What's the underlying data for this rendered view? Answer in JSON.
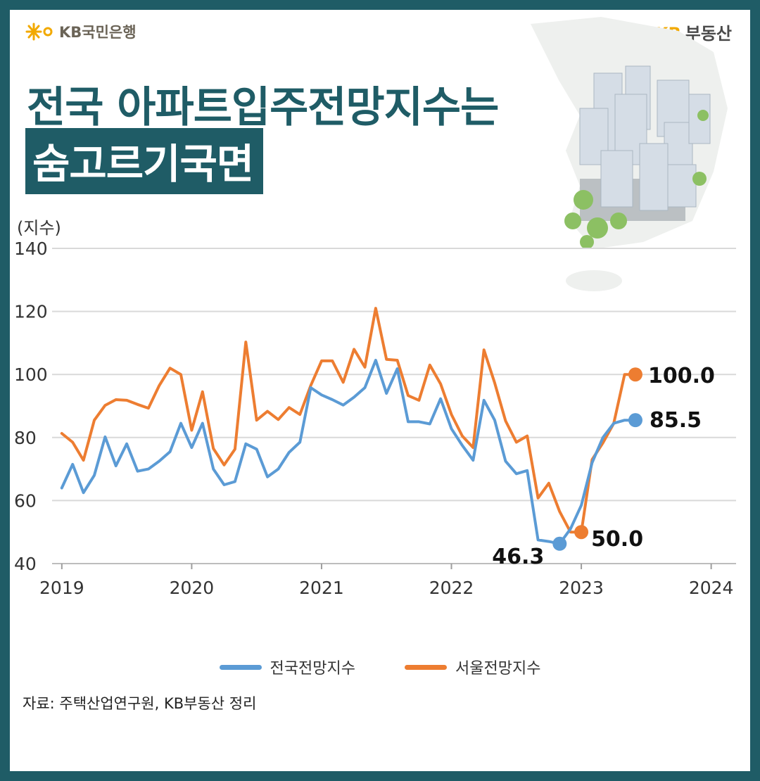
{
  "header": {
    "brand_left": "KB국민은행",
    "brand_right_kb": "KB",
    "brand_right_text": "부동산",
    "title_line1": "전국 아파트입주전망지수는",
    "title_line2": "숨고르기국면"
  },
  "colors": {
    "accent": "#1f5c66",
    "national": "#5b9bd5",
    "seoul": "#ed7d31",
    "grid": "#d9d9d9"
  },
  "chart_data": {
    "type": "line",
    "ylabel": "(지수)",
    "ylim": [
      40,
      140
    ],
    "yticks": [
      "40",
      "60",
      "80",
      "100",
      "120",
      "140"
    ],
    "xlim": [
      2019,
      2024.2
    ],
    "xticks": [
      "2019",
      "2020",
      "2021",
      "2022",
      "2023",
      "2024"
    ],
    "grid": true,
    "legend_position": "bottom",
    "x_start": 2019,
    "x_step_months": 1,
    "series": [
      {
        "name": "전국전망지수",
        "color": "#5b9bd5",
        "values": [
          64,
          71.5,
          62.5,
          68,
          80.2,
          71,
          78,
          69.3,
          70,
          72.5,
          75.5,
          84.5,
          76.8,
          84.5,
          70,
          65,
          66,
          78,
          76.3,
          67.5,
          70,
          75.3,
          78.5,
          95.8,
          93.5,
          92,
          90.3,
          92.8,
          95.8,
          104.5,
          94,
          101.8,
          85,
          85,
          84.3,
          92.3,
          82.8,
          77.5,
          72.8,
          91.8,
          85.5,
          72.5,
          68.5,
          69.5,
          47.5,
          47,
          46.3,
          51,
          58.5,
          72,
          80,
          84.5,
          85.5,
          85.5
        ]
      },
      {
        "name": "서울전망지수",
        "color": "#ed7d31",
        "values": [
          81.3,
          78.5,
          72.8,
          85.5,
          90.2,
          92,
          91.8,
          90.5,
          89.3,
          96.5,
          102,
          100,
          82.3,
          94.5,
          76.5,
          71.3,
          76.3,
          110.3,
          85.5,
          88.3,
          85.7,
          89.5,
          87.3,
          96.5,
          104.3,
          104.3,
          97.5,
          108,
          102.3,
          121,
          104.8,
          104.5,
          93.3,
          91.8,
          103,
          97,
          87.3,
          80.5,
          76.8,
          107.8,
          97.3,
          85.3,
          78.5,
          80.5,
          60.8,
          65.5,
          56.5,
          50,
          50,
          73,
          78.3,
          84.5,
          100,
          100
        ]
      }
    ],
    "annotations": [
      {
        "series": 0,
        "index": 46,
        "label": "46.3"
      },
      {
        "series": 1,
        "index": 48,
        "label": "50.0"
      },
      {
        "series": 0,
        "index": 53,
        "label": "85.5"
      },
      {
        "series": 1,
        "index": 53,
        "label": "100.0"
      }
    ]
  },
  "source": "자료: 주택산업연구원, KB부동산 정리"
}
